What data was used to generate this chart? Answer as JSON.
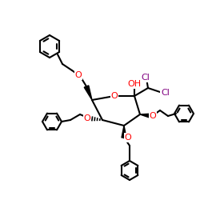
{
  "background": "white",
  "bond_color": "black",
  "bond_width": 1.5,
  "atom_colors": {
    "O": "#ff0000",
    "Cl": "#800080",
    "C": "black",
    "H": "black"
  },
  "font_size_atom": 7.5,
  "font_size_label": 7.5
}
